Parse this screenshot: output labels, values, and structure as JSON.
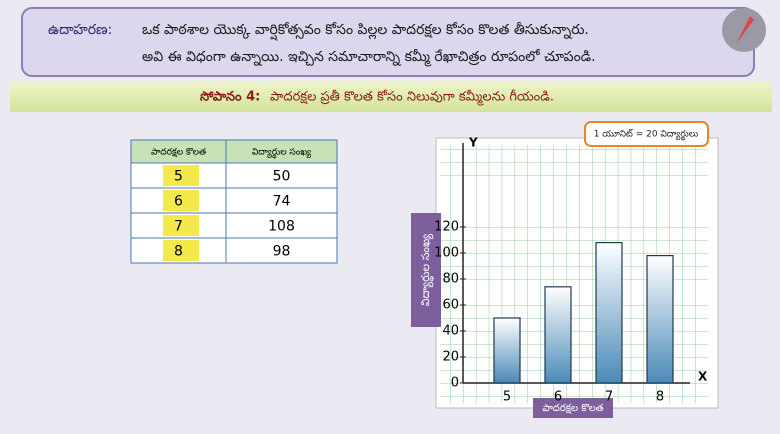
{
  "header": {
    "label": "ఉదాహరణ:",
    "lines": [
      "ఒక పాఠశాల యొక్క వార్షికోత్సవం కోసం పిల్లల పాదరక్షల కోసం కొలత తీసుకున్నారు.",
      "అవి ఈ విధంగా ఉన్నాయి. ఇచ్చిన సమాచారాన్ని కమ్మీ రేఖాచిత్రం రూపంలో చూపండి."
    ]
  },
  "step": {
    "label": "సోపానం 4:",
    "text": "పాదరక్షల ప్రతీ కొలత కోసం నిలువుగా కమ్మీలను గీయండి."
  },
  "table": {
    "columns": [
      "పాదరక్షల కొలత",
      "విద్యార్థుల సంఖ్య"
    ],
    "rows": [
      [
        "5",
        "50"
      ],
      [
        "6",
        "74"
      ],
      [
        "7",
        "108"
      ],
      [
        "8",
        "98"
      ]
    ]
  },
  "chart_data": {
    "type": "bar",
    "note": "1 యూనిట్ = 20 విద్యార్థులు",
    "y_axis_letter": "Y",
    "x_axis_letter": "X",
    "ylabel": "విద్యార్థుల సంఖ్య",
    "xlabel": "పాదరక్షల కొలత",
    "categories": [
      "5",
      "6",
      "7",
      "8"
    ],
    "values": [
      50,
      74,
      108,
      98
    ],
    "ylim": [
      0,
      180
    ],
    "yticks": [
      0,
      20,
      40,
      60,
      80,
      100,
      120
    ],
    "color": "#4a8ab8",
    "grid": true
  }
}
